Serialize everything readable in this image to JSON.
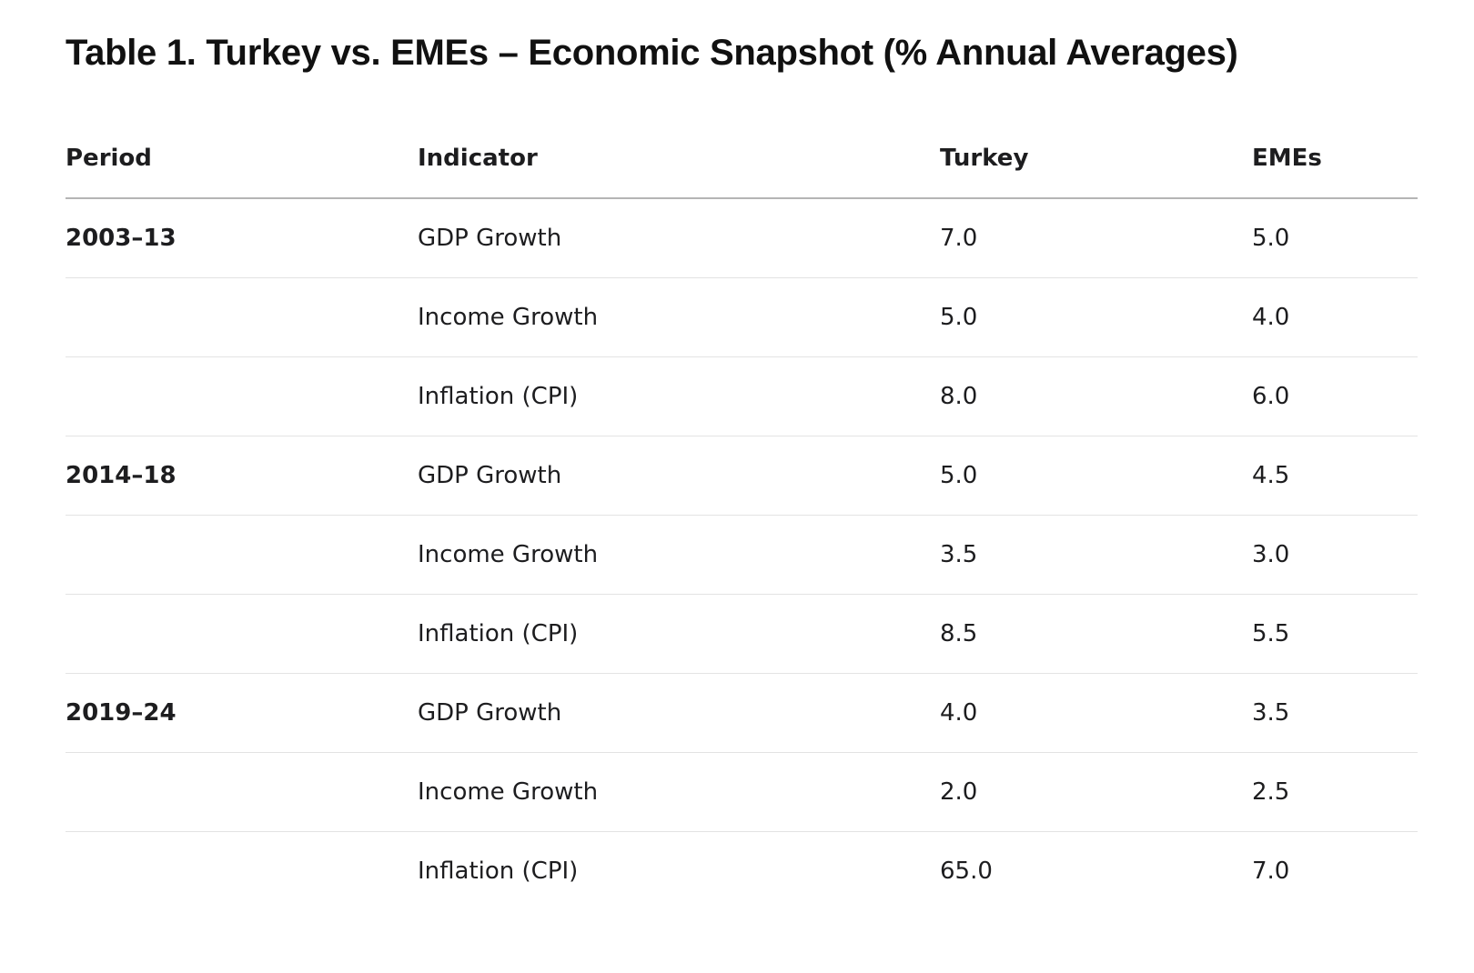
{
  "title": "Table 1. Turkey vs. EMEs – Economic Snapshot (% Annual Averages)",
  "table": {
    "headers": [
      "Period",
      "Indicator",
      "Turkey",
      "EMEs"
    ],
    "rows": [
      {
        "period": "2003–13",
        "indicator": "GDP Growth",
        "turkey": "7.0",
        "emes": "5.0"
      },
      {
        "period": "",
        "indicator": "Income Growth",
        "turkey": "5.0",
        "emes": "4.0"
      },
      {
        "period": "",
        "indicator": "Inflation (CPI)",
        "turkey": "8.0",
        "emes": "6.0"
      },
      {
        "period": "2014–18",
        "indicator": "GDP Growth",
        "turkey": "5.0",
        "emes": "4.5"
      },
      {
        "period": "",
        "indicator": "Income Growth",
        "turkey": "3.5",
        "emes": "3.0"
      },
      {
        "period": "",
        "indicator": "Inflation (CPI)",
        "turkey": "8.5",
        "emes": "5.5"
      },
      {
        "period": "2019–24",
        "indicator": "GDP Growth",
        "turkey": "4.0",
        "emes": "3.5"
      },
      {
        "period": "",
        "indicator": "Income Growth",
        "turkey": "2.0",
        "emes": "2.5"
      },
      {
        "period": "",
        "indicator": "Inflation (CPI)",
        "turkey": "65.0",
        "emes": "7.0"
      }
    ]
  }
}
